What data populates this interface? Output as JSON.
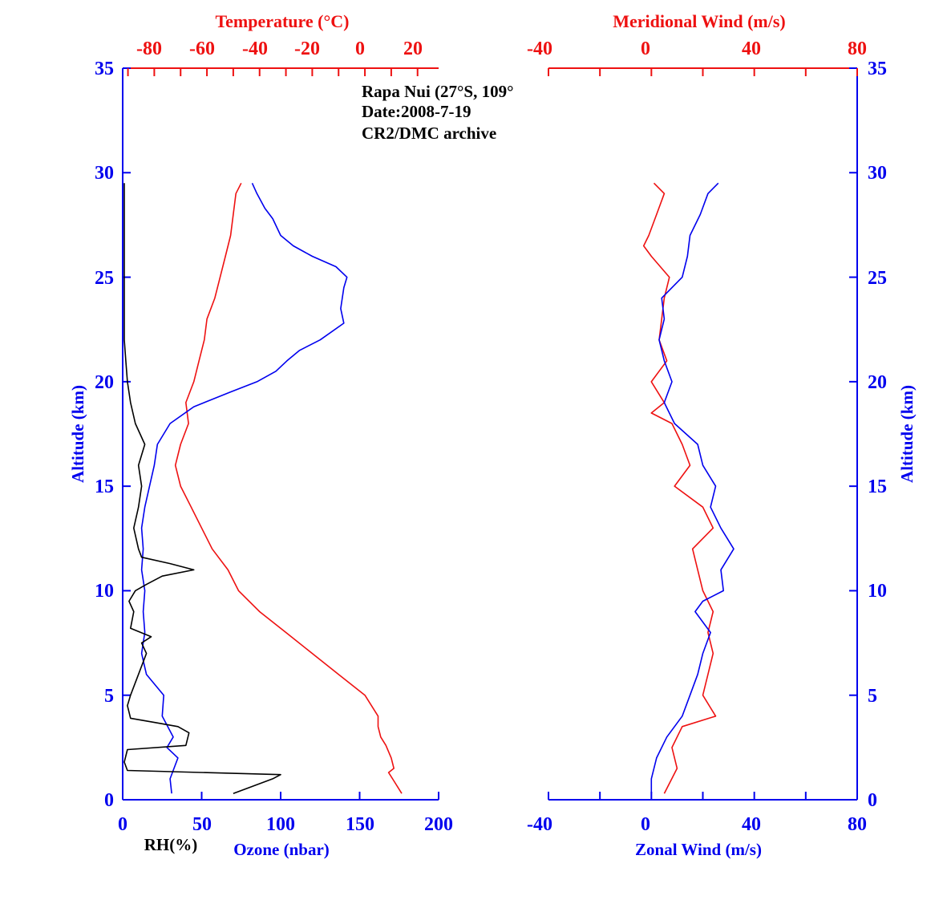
{
  "colors": {
    "blue": "#0000ee",
    "red": "#ee1111",
    "black": "#000000"
  },
  "annotation": [
    "Rapa Nui (27°S, 109°",
    "Date:2008-7-19",
    "CR2/DMC archive"
  ],
  "left_panel": {
    "altitude_label": "Altitude (km)",
    "top_axis_title": "Temperature (°C)",
    "top_ticks": [
      "-80",
      "-60",
      "-40",
      "-20",
      "0",
      "20"
    ],
    "bottom_ticks": [
      "0",
      "50",
      "100",
      "150",
      "200"
    ],
    "rh_label": "RH(%)",
    "ozone_label": "Ozone (nbar)",
    "alt_ticks": [
      "0",
      "5",
      "10",
      "15",
      "20",
      "25",
      "30",
      "35"
    ]
  },
  "right_panel": {
    "altitude_label": "Altitude (km)",
    "top_axis_title": "Meridional Wind (m/s)",
    "top_ticks": [
      "-40",
      "0",
      "40",
      "80"
    ],
    "bottom_ticks": [
      "-40",
      "0",
      "40",
      "80"
    ],
    "bottom_axis_title": "Zonal Wind (m/s)",
    "alt_ticks": [
      "0",
      "5",
      "10",
      "15",
      "20",
      "25",
      "30",
      "35"
    ]
  },
  "chart_data": [
    {
      "type": "line",
      "panel": "left",
      "y_label": "Altitude (km)",
      "ylim": [
        0,
        35
      ],
      "series": [
        {
          "name": "Temperature (°C)",
          "axis": "top",
          "xlim": [
            -92,
            28
          ],
          "color": "#ee1111",
          "points": [
            [
              14,
              0.3
            ],
            [
              11,
              0.9
            ],
            [
              9,
              1.3
            ],
            [
              11,
              1.5
            ],
            [
              10,
              2
            ],
            [
              8,
              2.6
            ],
            [
              6,
              3
            ],
            [
              5,
              3.5
            ],
            [
              5,
              4
            ],
            [
              0,
              5
            ],
            [
              -10,
              6
            ],
            [
              -22,
              7.2
            ],
            [
              -30,
              8
            ],
            [
              -40,
              9
            ],
            [
              -48,
              10
            ],
            [
              -52,
              11
            ],
            [
              -58,
              12
            ],
            [
              -62,
              13
            ],
            [
              -66,
              14
            ],
            [
              -70,
              15
            ],
            [
              -72,
              16
            ],
            [
              -70,
              17
            ],
            [
              -67,
              18
            ],
            [
              -68,
              19
            ],
            [
              -65,
              20
            ],
            [
              -63,
              21
            ],
            [
              -61,
              22
            ],
            [
              -60,
              23
            ],
            [
              -57,
              24
            ],
            [
              -55,
              25
            ],
            [
              -53,
              26
            ],
            [
              -51,
              27
            ],
            [
              -50,
              28
            ],
            [
              -49,
              29
            ],
            [
              -47,
              29.5
            ]
          ]
        },
        {
          "name": "Ozone (nbar)",
          "axis": "bottom",
          "xlim": [
            0,
            200
          ],
          "color": "#0000ee",
          "points": [
            [
              31,
              0.3
            ],
            [
              30,
              1
            ],
            [
              35,
              2
            ],
            [
              28,
              2.5
            ],
            [
              32,
              3
            ],
            [
              25,
              4
            ],
            [
              26,
              5
            ],
            [
              15,
              6
            ],
            [
              12,
              7
            ],
            [
              14,
              8
            ],
            [
              13,
              9
            ],
            [
              14,
              10
            ],
            [
              12,
              11
            ],
            [
              13,
              12
            ],
            [
              12,
              13
            ],
            [
              14,
              14
            ],
            [
              17,
              15
            ],
            [
              20,
              16
            ],
            [
              22,
              17
            ],
            [
              30,
              18
            ],
            [
              45,
              18.8
            ],
            [
              68,
              19.5
            ],
            [
              85,
              20
            ],
            [
              97,
              20.5
            ],
            [
              104,
              21
            ],
            [
              112,
              21.5
            ],
            [
              125,
              22
            ],
            [
              140,
              22.8
            ],
            [
              138,
              23.5
            ],
            [
              140,
              24.5
            ],
            [
              142,
              25
            ],
            [
              135,
              25.5
            ],
            [
              120,
              26
            ],
            [
              108,
              26.5
            ],
            [
              100,
              27
            ],
            [
              95,
              27.8
            ],
            [
              90,
              28.3
            ],
            [
              85,
              29
            ],
            [
              82,
              29.5
            ]
          ]
        },
        {
          "name": "RH(%)",
          "axis": "bottom",
          "xlim": [
            0,
            200
          ],
          "color": "#000000",
          "points": [
            [
              70,
              0.3
            ],
            [
              95,
              1
            ],
            [
              100,
              1.2
            ],
            [
              3,
              1.4
            ],
            [
              1,
              1.8
            ],
            [
              3,
              2.4
            ],
            [
              40,
              2.6
            ],
            [
              42,
              3.2
            ],
            [
              35,
              3.5
            ],
            [
              20,
              3.7
            ],
            [
              5,
              3.9
            ],
            [
              3,
              4.5
            ],
            [
              5,
              5
            ],
            [
              10,
              6
            ],
            [
              15,
              7
            ],
            [
              12,
              7.5
            ],
            [
              18,
              7.8
            ],
            [
              5,
              8.2
            ],
            [
              7,
              9
            ],
            [
              4,
              9.5
            ],
            [
              8,
              10
            ],
            [
              15,
              10.3
            ],
            [
              25,
              10.7
            ],
            [
              45,
              11
            ],
            [
              30,
              11.3
            ],
            [
              12,
              11.6
            ],
            [
              10,
              12
            ],
            [
              7,
              13
            ],
            [
              10,
              14
            ],
            [
              12,
              15
            ],
            [
              10,
              16
            ],
            [
              14,
              17
            ],
            [
              8,
              18
            ],
            [
              5,
              19
            ],
            [
              3,
              20
            ],
            [
              2,
              21
            ],
            [
              1,
              22
            ],
            [
              1,
              25
            ],
            [
              1,
              29.5
            ]
          ]
        }
      ]
    },
    {
      "type": "line",
      "panel": "right",
      "y_label": "Altitude (km)",
      "ylim": [
        0,
        35
      ],
      "series": [
        {
          "name": "Meridional Wind (m/s)",
          "axis": "top",
          "xlim": [
            -40,
            80
          ],
          "color": "#ee1111",
          "points": [
            [
              5,
              0.3
            ],
            [
              10,
              1.5
            ],
            [
              8,
              2.5
            ],
            [
              12,
              3.5
            ],
            [
              25,
              4
            ],
            [
              20,
              5
            ],
            [
              22,
              6
            ],
            [
              24,
              7
            ],
            [
              22,
              8
            ],
            [
              24,
              9
            ],
            [
              20,
              10
            ],
            [
              18,
              11
            ],
            [
              16,
              12
            ],
            [
              24,
              13
            ],
            [
              20,
              14
            ],
            [
              9,
              15
            ],
            [
              15,
              16
            ],
            [
              12,
              17
            ],
            [
              8,
              18
            ],
            [
              0,
              18.5
            ],
            [
              5,
              19
            ],
            [
              0,
              20
            ],
            [
              6,
              21
            ],
            [
              3,
              22
            ],
            [
              4,
              23
            ],
            [
              5,
              24
            ],
            [
              7,
              25
            ],
            [
              0,
              26
            ],
            [
              -3,
              26.5
            ],
            [
              -1,
              27
            ],
            [
              2,
              28
            ],
            [
              5,
              29
            ],
            [
              1,
              29.5
            ]
          ]
        },
        {
          "name": "Zonal Wind (m/s)",
          "axis": "bottom",
          "xlim": [
            -40,
            80
          ],
          "color": "#0000ee",
          "points": [
            [
              0,
              0.3
            ],
            [
              0,
              1
            ],
            [
              2,
              2
            ],
            [
              6,
              3
            ],
            [
              12,
              4
            ],
            [
              15,
              5
            ],
            [
              18,
              6
            ],
            [
              20,
              7
            ],
            [
              23,
              8
            ],
            [
              17,
              9
            ],
            [
              20,
              9.5
            ],
            [
              28,
              10
            ],
            [
              27,
              11
            ],
            [
              32,
              12
            ],
            [
              27,
              13
            ],
            [
              23,
              14
            ],
            [
              25,
              15
            ],
            [
              20,
              16
            ],
            [
              18,
              17
            ],
            [
              9,
              18
            ],
            [
              5,
              19
            ],
            [
              8,
              20
            ],
            [
              5,
              21
            ],
            [
              3,
              22
            ],
            [
              5,
              23
            ],
            [
              4,
              24
            ],
            [
              12,
              25
            ],
            [
              14,
              26
            ],
            [
              15,
              27
            ],
            [
              19,
              28
            ],
            [
              22,
              29
            ],
            [
              26,
              29.5
            ]
          ]
        }
      ]
    }
  ]
}
